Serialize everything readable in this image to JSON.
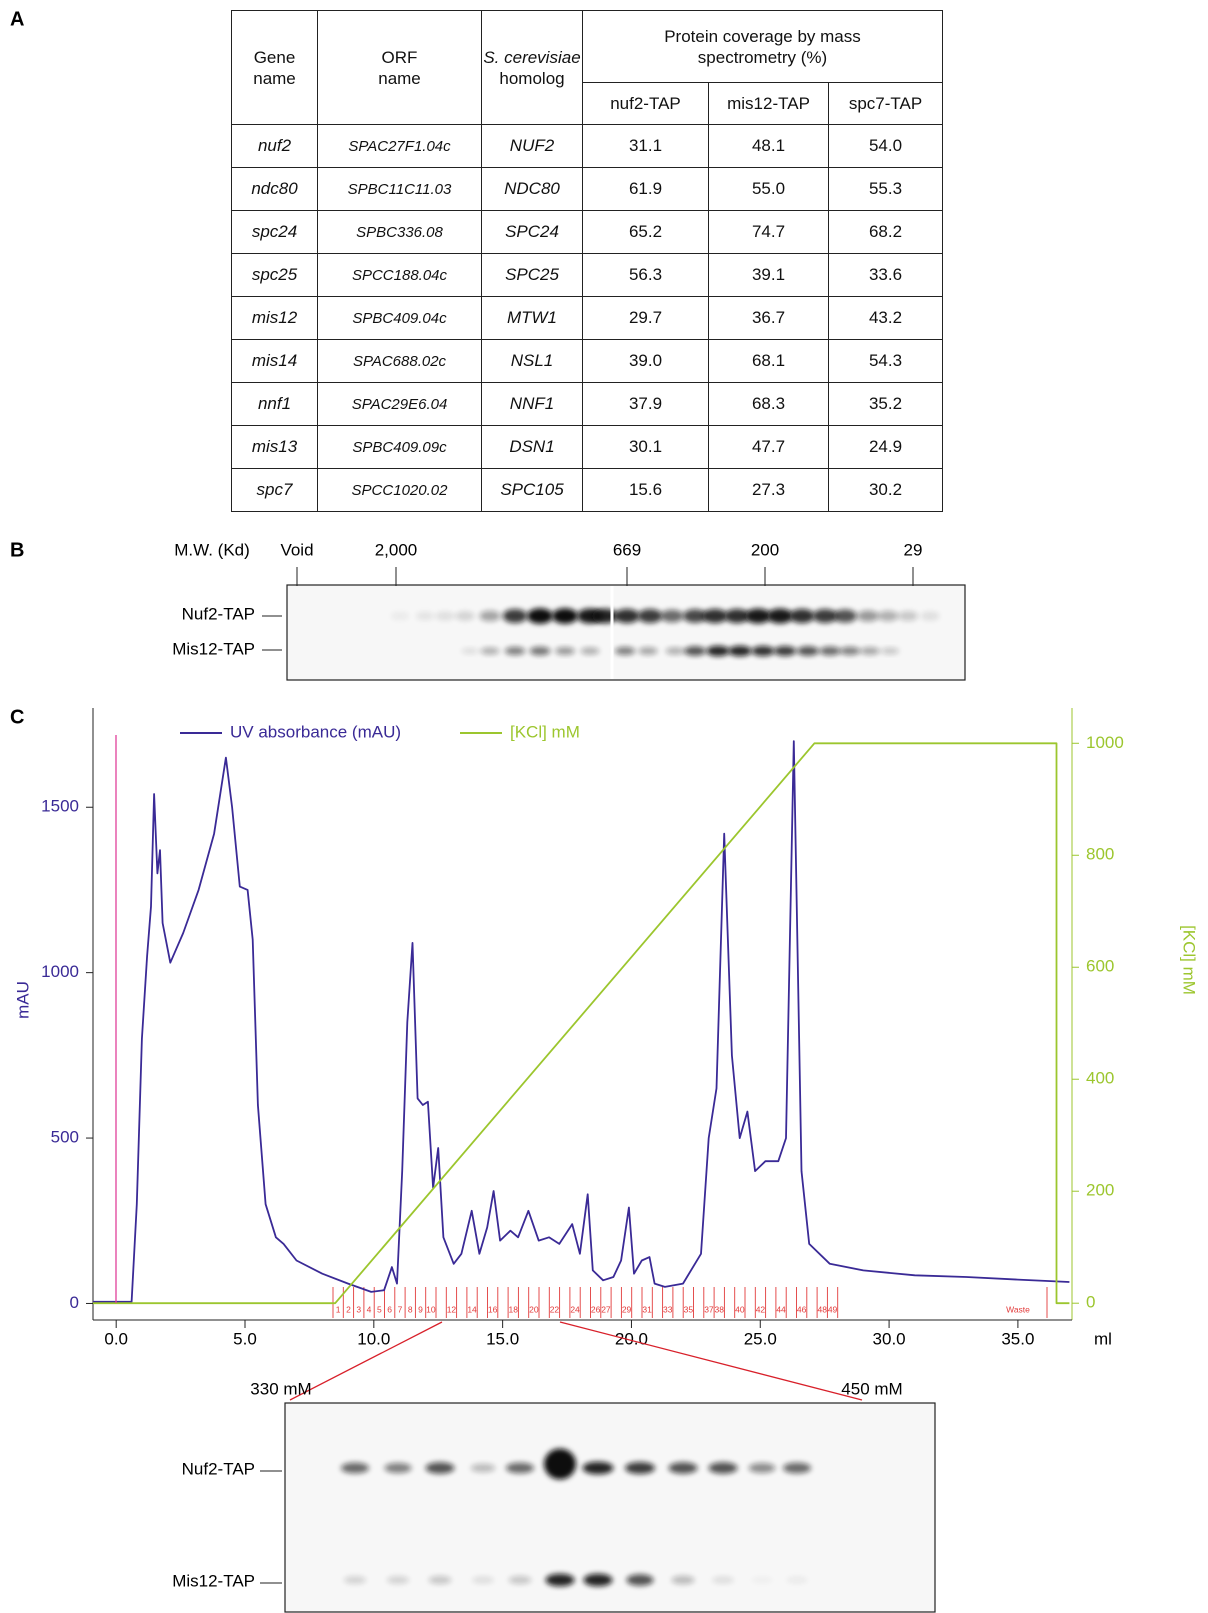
{
  "panel_labels": [
    "A",
    "B",
    "C"
  ],
  "table": {
    "header": {
      "gene": "Gene name",
      "orf": "ORF name",
      "homolog": {
        "species": "S. cerevisiae",
        "word": "homolog"
      },
      "coverage": "Protein coverage by mass spectrometry (%)",
      "strains": [
        "nuf2-TAP",
        "mis12-TAP",
        "spc7-TAP"
      ]
    },
    "rows": [
      [
        "nuf2",
        "SPAC27F1.04c",
        "NUF2",
        "31.1",
        "48.1",
        "54.0"
      ],
      [
        "ndc80",
        "SPBC11C11.03",
        "NDC80",
        "61.9",
        "55.0",
        "55.3"
      ],
      [
        "spc24",
        "SPBC336.08",
        "SPC24",
        "65.2",
        "74.7",
        "68.2"
      ],
      [
        "spc25",
        "SPCC188.04c",
        "SPC25",
        "56.3",
        "39.1",
        "33.6"
      ],
      [
        "mis12",
        "SPBC409.04c",
        "MTW1",
        "29.7",
        "36.7",
        "43.2"
      ],
      [
        "mis14",
        "SPAC688.02c",
        "NSL1",
        "39.0",
        "68.1",
        "54.3"
      ],
      [
        "nnf1",
        "SPAC29E6.04",
        "NNF1",
        "37.9",
        "68.3",
        "35.2"
      ],
      [
        "mis13",
        "SPBC409.09c",
        "DSN1",
        "30.1",
        "47.7",
        "24.9"
      ],
      [
        "spc7",
        "SPCC1020.02",
        "SPC105",
        "15.6",
        "27.3",
        "30.2"
      ]
    ]
  },
  "gel_b": {
    "axis_label": "M.W. (Kd)",
    "markers": [
      "Void",
      "2,000",
      "669",
      "200",
      "29"
    ],
    "lanes": [
      "Nuf2-TAP",
      "Mis12-TAP"
    ]
  },
  "chart_data": {
    "type": "line",
    "x_label": "ml",
    "y_label": "mAU",
    "y2_label": "[KCl] mM",
    "xlim": [
      -0.9,
      37.1
    ],
    "ylim": [
      -50,
      1800
    ],
    "y2lim": [
      -30,
      1063
    ],
    "xticks": [
      {
        "value": 0,
        "label": "0.0"
      },
      {
        "value": 5,
        "label": "5.0"
      },
      {
        "value": 10,
        "label": "10.0"
      },
      {
        "value": 15,
        "label": "15.0"
      },
      {
        "value": 20,
        "label": "20.0"
      },
      {
        "value": 25,
        "label": "25.0"
      },
      {
        "value": 30,
        "label": "30.0"
      },
      {
        "value": 35,
        "label": "35.0"
      }
    ],
    "yticks": [
      0,
      500,
      1000,
      1500
    ],
    "y2ticks": [
      0,
      200,
      400,
      600,
      800,
      1000
    ],
    "series": [
      {
        "name": "UV absorbance (mAU)",
        "color": "#3a2a96",
        "x": [
          -0.9,
          0.6,
          0.8,
          1.0,
          1.2,
          1.35,
          1.47,
          1.6,
          1.7,
          1.8,
          2.1,
          2.6,
          3.2,
          3.8,
          4.26,
          4.5,
          4.8,
          5.1,
          5.3,
          5.5,
          5.8,
          6.2,
          6.5,
          7.0,
          8.0,
          9.0,
          9.9,
          10.4,
          10.7,
          10.9,
          11.1,
          11.3,
          11.5,
          11.7,
          11.9,
          12.1,
          12.3,
          12.5,
          12.7,
          13.1,
          13.4,
          13.8,
          14.1,
          14.4,
          14.65,
          14.9,
          15.3,
          15.6,
          16.0,
          16.4,
          16.8,
          17.2,
          17.7,
          18.0,
          18.3,
          18.5,
          18.9,
          19.3,
          19.6,
          19.9,
          20.1,
          20.4,
          20.7,
          20.9,
          21.3,
          22.0,
          22.7,
          23.0,
          23.3,
          23.6,
          23.9,
          24.2,
          24.5,
          24.8,
          25.2,
          25.7,
          26.0,
          26.3,
          26.6,
          26.9,
          27.7,
          29.0,
          31.0,
          33.0,
          35.0,
          37.0
        ],
        "values": [
          5,
          5,
          300,
          800,
          1050,
          1200,
          1540,
          1300,
          1370,
          1150,
          1030,
          1120,
          1250,
          1420,
          1650,
          1500,
          1260,
          1250,
          1100,
          600,
          300,
          200,
          180,
          130,
          90,
          60,
          35,
          40,
          110,
          60,
          400,
          850,
          1090,
          620,
          600,
          610,
          350,
          470,
          200,
          120,
          150,
          280,
          150,
          230,
          340,
          190,
          220,
          200,
          280,
          190,
          200,
          180,
          240,
          150,
          330,
          100,
          70,
          80,
          130,
          290,
          90,
          130,
          140,
          60,
          50,
          60,
          150,
          500,
          650,
          1420,
          750,
          500,
          580,
          400,
          430,
          430,
          500,
          1700,
          400,
          180,
          120,
          100,
          85,
          80,
          72,
          65
        ]
      },
      {
        "name": "[KCl] mM",
        "color": "#9cc62e",
        "axis": "y2",
        "x": [
          -0.9,
          8.5,
          27.1,
          36.5,
          36.5,
          37.0
        ],
        "values": [
          0,
          0,
          1000,
          1000,
          0,
          0
        ]
      }
    ],
    "fractions": [
      "1",
      "2",
      "3",
      "4",
      "5",
      "6",
      "7",
      "8",
      "9",
      "10",
      "12",
      "14",
      "16",
      "18",
      "20",
      "22",
      "24",
      "26",
      "27",
      "29",
      "31",
      "33",
      "35",
      "37",
      "38",
      "40",
      "42",
      "44",
      "46",
      "48",
      "49",
      "Waste"
    ]
  },
  "gel_c": {
    "range": [
      "330 mM",
      "450 mM"
    ],
    "lanes": [
      "Nuf2-TAP",
      "Mis12-TAP"
    ]
  }
}
